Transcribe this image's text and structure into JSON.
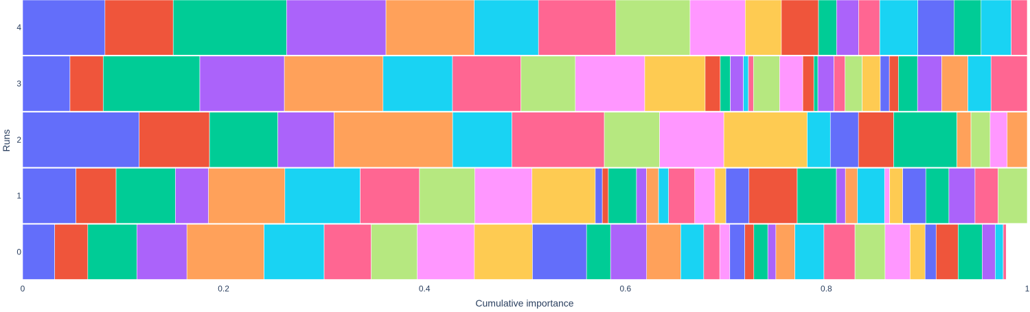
{
  "chart_data": {
    "type": "bar",
    "orientation": "horizontal",
    "stacked": true,
    "xlabel": "Cumulative importance",
    "ylabel": "Runs",
    "xlim": [
      0,
      1
    ],
    "x_ticks": [
      "0",
      "0.2",
      "0.4",
      "0.6",
      "0.8",
      "1"
    ],
    "x_tick_values": [
      0,
      0.2,
      0.4,
      0.6,
      0.8,
      1
    ],
    "categories": [
      "0",
      "1",
      "2",
      "3",
      "4"
    ],
    "grid": false,
    "legend": "none",
    "palette": [
      "#636efa",
      "#ef553b",
      "#00cc96",
      "#ab63fa",
      "#ffa15a",
      "#19d3f3",
      "#ff6692",
      "#b6e880",
      "#ff97ff",
      "#fecb52"
    ],
    "runs": [
      {
        "label": "0",
        "segments": [
          {
            "value": 0.032,
            "color": "#636efa"
          },
          {
            "value": 0.033,
            "color": "#ef553b"
          },
          {
            "value": 0.049,
            "color": "#00cc96"
          },
          {
            "value": 0.05,
            "color": "#ab63fa"
          },
          {
            "value": 0.077,
            "color": "#ffa15a"
          },
          {
            "value": 0.06,
            "color": "#19d3f3"
          },
          {
            "value": 0.047,
            "color": "#ff6692"
          },
          {
            "value": 0.046,
            "color": "#b6e880"
          },
          {
            "value": 0.057,
            "color": "#ff97ff"
          },
          {
            "value": 0.058,
            "color": "#fecb52"
          },
          {
            "value": 0.054,
            "color": "#636efa"
          },
          {
            "value": 0.024,
            "color": "#00cc96"
          },
          {
            "value": 0.036,
            "color": "#ab63fa"
          },
          {
            "value": 0.034,
            "color": "#ffa15a"
          },
          {
            "value": 0.023,
            "color": "#19d3f3"
          },
          {
            "value": 0.016,
            "color": "#ff6692"
          },
          {
            "value": 0.01,
            "color": "#ff97ff"
          },
          {
            "value": 0.015,
            "color": "#636efa"
          },
          {
            "value": 0.009,
            "color": "#ef553b"
          },
          {
            "value": 0.014,
            "color": "#00cc96"
          },
          {
            "value": 0.008,
            "color": "#ab63fa"
          },
          {
            "value": 0.019,
            "color": "#ffa15a"
          },
          {
            "value": 0.029,
            "color": "#19d3f3"
          },
          {
            "value": 0.031,
            "color": "#ff6692"
          },
          {
            "value": 0.03,
            "color": "#b6e880"
          },
          {
            "value": 0.025,
            "color": "#ff97ff"
          },
          {
            "value": 0.015,
            "color": "#fecb52"
          },
          {
            "value": 0.011,
            "color": "#636efa"
          },
          {
            "value": 0.022,
            "color": "#ef553b"
          },
          {
            "value": 0.024,
            "color": "#00cc96"
          },
          {
            "value": 0.013,
            "color": "#ab63fa"
          },
          {
            "value": 0.008,
            "color": "#19d3f3"
          },
          {
            "value": 0.003,
            "color": "#ff6692"
          },
          {
            "value": 0.021,
            "color": "#ffffff"
          }
        ]
      },
      {
        "label": "1",
        "segments": [
          {
            "value": 0.053,
            "color": "#636efa"
          },
          {
            "value": 0.04,
            "color": "#ef553b"
          },
          {
            "value": 0.059,
            "color": "#00cc96"
          },
          {
            "value": 0.033,
            "color": "#ab63fa"
          },
          {
            "value": 0.076,
            "color": "#ffa15a"
          },
          {
            "value": 0.075,
            "color": "#19d3f3"
          },
          {
            "value": 0.059,
            "color": "#ff6692"
          },
          {
            "value": 0.055,
            "color": "#b6e880"
          },
          {
            "value": 0.057,
            "color": "#ff97ff"
          },
          {
            "value": 0.063,
            "color": "#fecb52"
          },
          {
            "value": 0.007,
            "color": "#636efa"
          },
          {
            "value": 0.006,
            "color": "#ef553b"
          },
          {
            "value": 0.028,
            "color": "#00cc96"
          },
          {
            "value": 0.01,
            "color": "#ab63fa"
          },
          {
            "value": 0.012,
            "color": "#ffa15a"
          },
          {
            "value": 0.01,
            "color": "#19d3f3"
          },
          {
            "value": 0.026,
            "color": "#ff6692"
          },
          {
            "value": 0.02,
            "color": "#ff97ff"
          },
          {
            "value": 0.011,
            "color": "#fecb52"
          },
          {
            "value": 0.023,
            "color": "#636efa"
          },
          {
            "value": 0.048,
            "color": "#ef553b"
          },
          {
            "value": 0.039,
            "color": "#00cc96"
          },
          {
            "value": 0.009,
            "color": "#ab63fa"
          },
          {
            "value": 0.012,
            "color": "#ffa15a"
          },
          {
            "value": 0.027,
            "color": "#19d3f3"
          },
          {
            "value": 0.005,
            "color": "#ff97ff"
          },
          {
            "value": 0.013,
            "color": "#fecb52"
          },
          {
            "value": 0.023,
            "color": "#636efa"
          },
          {
            "value": 0.023,
            "color": "#00cc96"
          },
          {
            "value": 0.026,
            "color": "#ab63fa"
          },
          {
            "value": 0.023,
            "color": "#ff6692"
          },
          {
            "value": 0.029,
            "color": "#b6e880"
          }
        ]
      },
      {
        "label": "2",
        "segments": [
          {
            "value": 0.116,
            "color": "#636efa"
          },
          {
            "value": 0.07,
            "color": "#ef553b"
          },
          {
            "value": 0.068,
            "color": "#00cc96"
          },
          {
            "value": 0.056,
            "color": "#ab63fa"
          },
          {
            "value": 0.118,
            "color": "#ffa15a"
          },
          {
            "value": 0.059,
            "color": "#19d3f3"
          },
          {
            "value": 0.092,
            "color": "#ff6692"
          },
          {
            "value": 0.055,
            "color": "#b6e880"
          },
          {
            "value": 0.064,
            "color": "#ff97ff"
          },
          {
            "value": 0.083,
            "color": "#fecb52"
          },
          {
            "value": 0.023,
            "color": "#19d3f3"
          },
          {
            "value": 0.028,
            "color": "#636efa"
          },
          {
            "value": 0.035,
            "color": "#ef553b"
          },
          {
            "value": 0.063,
            "color": "#00cc96"
          },
          {
            "value": 0.014,
            "color": "#ffa15a"
          },
          {
            "value": 0.019,
            "color": "#b6e880"
          },
          {
            "value": 0.017,
            "color": "#ff97ff"
          },
          {
            "value": 0.02,
            "color": "#ffa15a"
          }
        ]
      },
      {
        "label": "3",
        "segments": [
          {
            "value": 0.047,
            "color": "#636efa"
          },
          {
            "value": 0.033,
            "color": "#ef553b"
          },
          {
            "value": 0.096,
            "color": "#00cc96"
          },
          {
            "value": 0.084,
            "color": "#ab63fa"
          },
          {
            "value": 0.098,
            "color": "#ffa15a"
          },
          {
            "value": 0.069,
            "color": "#19d3f3"
          },
          {
            "value": 0.068,
            "color": "#ff6692"
          },
          {
            "value": 0.054,
            "color": "#b6e880"
          },
          {
            "value": 0.069,
            "color": "#ff97ff"
          },
          {
            "value": 0.06,
            "color": "#fecb52"
          },
          {
            "value": 0.015,
            "color": "#ef553b"
          },
          {
            "value": 0.01,
            "color": "#00cc96"
          },
          {
            "value": 0.013,
            "color": "#ab63fa"
          },
          {
            "value": 0.005,
            "color": "#19d3f3"
          },
          {
            "value": 0.005,
            "color": "#ff6692"
          },
          {
            "value": 0.026,
            "color": "#b6e880"
          },
          {
            "value": 0.023,
            "color": "#ff97ff"
          },
          {
            "value": 0.011,
            "color": "#ef553b"
          },
          {
            "value": 0.004,
            "color": "#00cc96"
          },
          {
            "value": 0.016,
            "color": "#ab63fa"
          },
          {
            "value": 0.011,
            "color": "#ff6692"
          },
          {
            "value": 0.017,
            "color": "#b6e880"
          },
          {
            "value": 0.018,
            "color": "#fecb52"
          },
          {
            "value": 0.009,
            "color": "#636efa"
          },
          {
            "value": 0.009,
            "color": "#ef553b"
          },
          {
            "value": 0.019,
            "color": "#00cc96"
          },
          {
            "value": 0.024,
            "color": "#ab63fa"
          },
          {
            "value": 0.026,
            "color": "#ffa15a"
          },
          {
            "value": 0.023,
            "color": "#19d3f3"
          },
          {
            "value": 0.036,
            "color": "#ff6692"
          }
        ]
      },
      {
        "label": "4",
        "segments": [
          {
            "value": 0.082,
            "color": "#636efa"
          },
          {
            "value": 0.068,
            "color": "#ef553b"
          },
          {
            "value": 0.113,
            "color": "#00cc96"
          },
          {
            "value": 0.099,
            "color": "#ab63fa"
          },
          {
            "value": 0.088,
            "color": "#ffa15a"
          },
          {
            "value": 0.064,
            "color": "#19d3f3"
          },
          {
            "value": 0.077,
            "color": "#ff6692"
          },
          {
            "value": 0.074,
            "color": "#b6e880"
          },
          {
            "value": 0.055,
            "color": "#ff97ff"
          },
          {
            "value": 0.036,
            "color": "#fecb52"
          },
          {
            "value": 0.037,
            "color": "#ef553b"
          },
          {
            "value": 0.018,
            "color": "#00cc96"
          },
          {
            "value": 0.022,
            "color": "#ab63fa"
          },
          {
            "value": 0.021,
            "color": "#ff6692"
          },
          {
            "value": 0.038,
            "color": "#19d3f3"
          },
          {
            "value": 0.036,
            "color": "#636efa"
          },
          {
            "value": 0.027,
            "color": "#00cc96"
          },
          {
            "value": 0.03,
            "color": "#19d3f3"
          },
          {
            "value": 0.016,
            "color": "#ff6692"
          }
        ]
      }
    ]
  }
}
